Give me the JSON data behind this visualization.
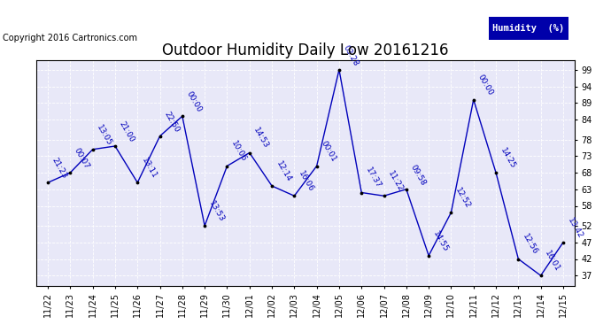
{
  "title": "Outdoor Humidity Daily Low 20161216",
  "copyright": "Copyright 2016 Cartronics.com",
  "legend_label": "Humidity  (%)",
  "x_labels": [
    "11/22",
    "11/23",
    "11/24",
    "11/25",
    "11/26",
    "11/27",
    "11/28",
    "11/29",
    "11/30",
    "12/01",
    "12/02",
    "12/03",
    "12/04",
    "12/05",
    "12/06",
    "12/07",
    "12/08",
    "12/09",
    "12/10",
    "12/11",
    "12/12",
    "12/13",
    "12/14",
    "12/15"
  ],
  "y_values": [
    65,
    68,
    75,
    76,
    65,
    79,
    85,
    52,
    70,
    74,
    64,
    61,
    70,
    99,
    62,
    61,
    63,
    43,
    56,
    90,
    68,
    42,
    37,
    47
  ],
  "time_labels": [
    "21:23",
    "00:07",
    "13:05",
    "21:00",
    "13:11",
    "22:50",
    "00:00",
    "13:53",
    "10:06",
    "14:53",
    "12:14",
    "16:06",
    "00:01",
    "03:28",
    "17:37",
    "11:22",
    "09:58",
    "14:55",
    "12:52",
    "00:00",
    "14:25",
    "12:56",
    "16:01",
    "13:42"
  ],
  "line_color": "#0000bb",
  "marker_color": "#000000",
  "fig_bg_color": "#ffffff",
  "plot_bg_color": "#e8e8f8",
  "grid_color": "#ffffff",
  "title_color": "#000000",
  "copyright_color": "#000000",
  "legend_bg": "#0000aa",
  "legend_text_color": "#ffffff",
  "ylim": [
    34,
    102
  ],
  "ytick_vals": [
    37,
    42,
    47,
    52,
    58,
    63,
    68,
    73,
    78,
    84,
    89,
    94,
    99
  ],
  "title_fontsize": 12,
  "tick_fontsize": 7,
  "time_fontsize": 6.5,
  "copyright_fontsize": 7,
  "legend_fontsize": 7.5
}
